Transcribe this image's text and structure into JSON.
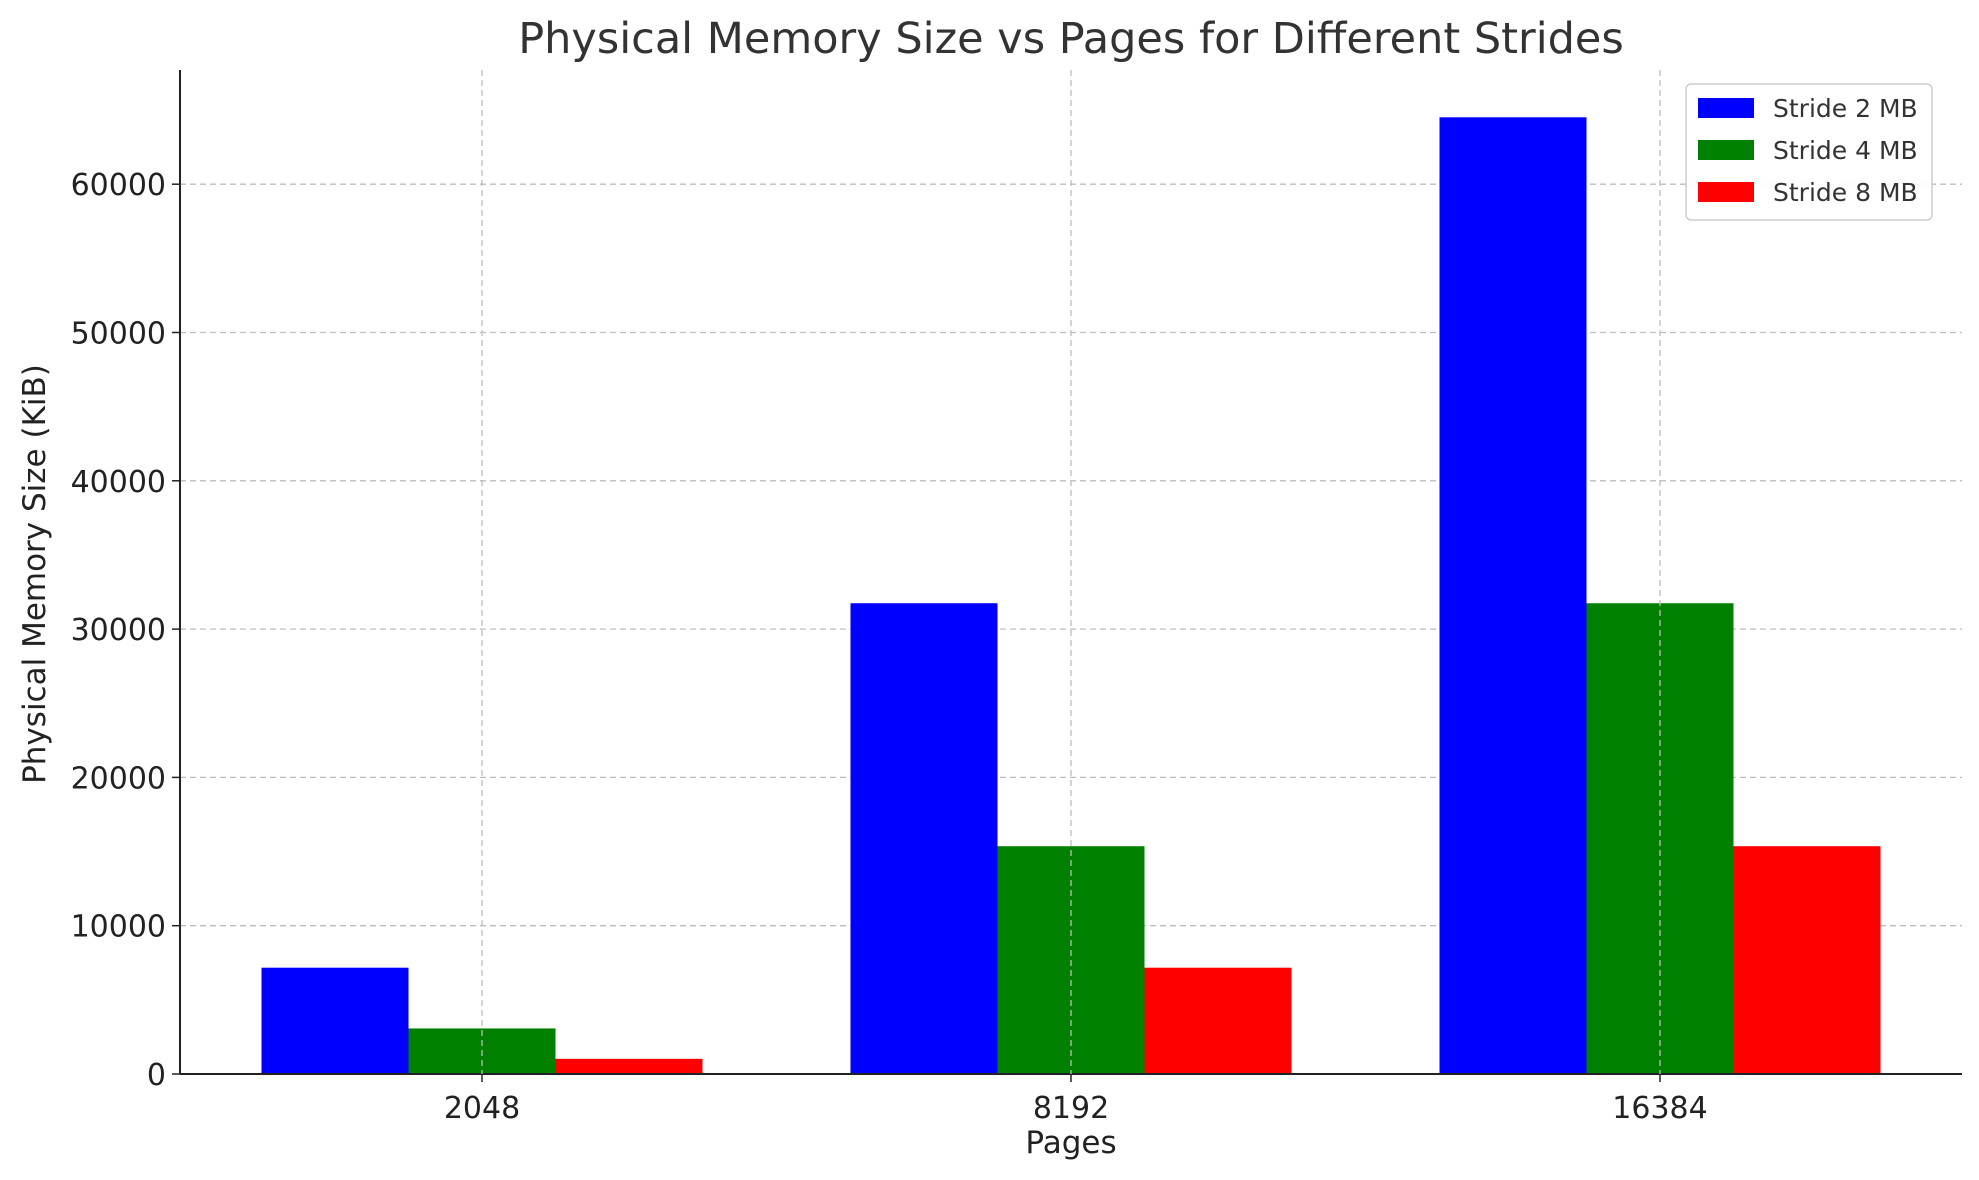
{
  "chart_data": {
    "type": "bar",
    "title": "Physical Memory Size vs Pages for Different Strides",
    "xlabel": "Pages",
    "ylabel": "Physical Memory Size (KiB)",
    "categories": [
      "2048",
      "8192",
      "16384"
    ],
    "series": [
      {
        "name": "Stride 2 MB",
        "color": "#0000ff",
        "values": [
          7168,
          31744,
          64512
        ]
      },
      {
        "name": "Stride 4 MB",
        "color": "#008000",
        "values": [
          3072,
          15360,
          31744
        ]
      },
      {
        "name": "Stride 8 MB",
        "color": "#ff0000",
        "values": [
          1024,
          7168,
          15360
        ]
      }
    ],
    "ylim": [
      0,
      67700
    ],
    "yticks": [
      0,
      10000,
      20000,
      30000,
      40000,
      50000,
      60000
    ],
    "grid": true,
    "legend_position": "top-right"
  }
}
